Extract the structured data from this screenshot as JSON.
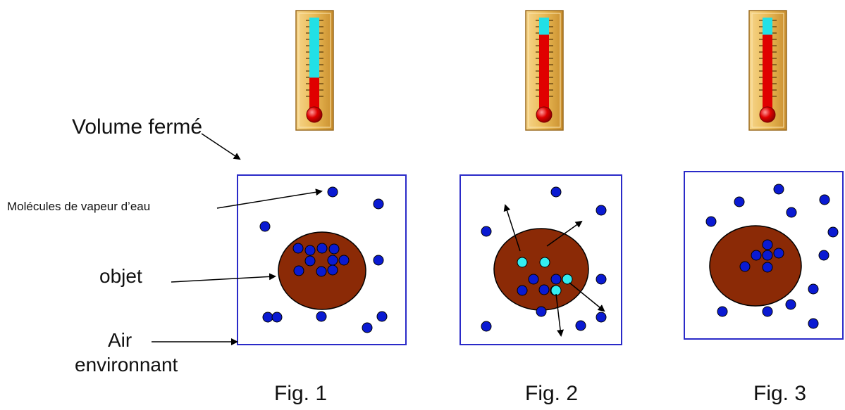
{
  "labels": {
    "volume_ferme": "Volume fermé",
    "molecules": "Molécules de vapeur d’eau",
    "objet": "objet",
    "air": "Air",
    "environnant": "environnant"
  },
  "figures": [
    {
      "caption": "Fig. 1",
      "thermometer_level": 0.3
    },
    {
      "caption": "Fig. 2",
      "thermometer_level": 0.8
    },
    {
      "caption": "Fig. 3",
      "thermometer_level": 0.8
    }
  ],
  "colors": {
    "molecule": "#0a1ad2",
    "molecule_escaping": "#33eef0",
    "object": "#8b2a06",
    "box_border": "#2a2ac8",
    "mercury": "#e00000",
    "thermo_empty": "#22e0e6",
    "thermo_frame": "#e2b046"
  }
}
